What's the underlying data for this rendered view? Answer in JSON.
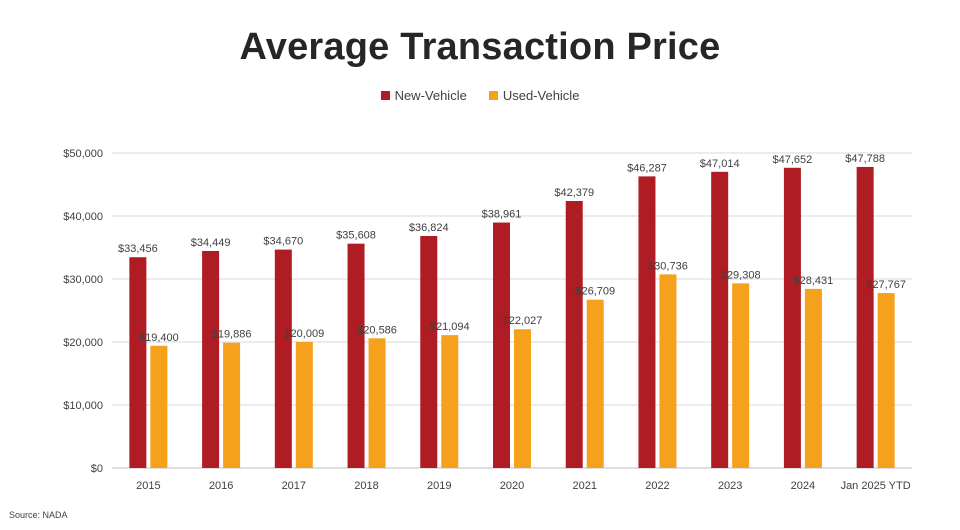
{
  "chart_data": {
    "type": "bar",
    "title": "Average Transaction Price",
    "categories": [
      "2015",
      "2016",
      "2017",
      "2018",
      "2019",
      "2020",
      "2021",
      "2022",
      "2023",
      "2024",
      "Jan 2025 YTD"
    ],
    "series": [
      {
        "name": "New-Vehicle",
        "color": "#b01c24",
        "values": [
          33456,
          34449,
          34670,
          35608,
          36824,
          38961,
          42379,
          46287,
          47014,
          47652,
          47788
        ],
        "labels": [
          "$33,456",
          "$34,449",
          "$34,670",
          "$35,608",
          "$36,824",
          "$38,961",
          "$42,379",
          "$46,287",
          "$47,014",
          "$47,652",
          "$47,788"
        ]
      },
      {
        "name": "Used-Vehicle",
        "color": "#f5a11c",
        "values": [
          19400,
          19886,
          20009,
          20586,
          21094,
          22027,
          26709,
          30736,
          29308,
          28431,
          27767
        ],
        "labels": [
          "$19,400",
          "$19,886",
          "$20,009",
          "$20,586",
          "$21,094",
          "$22,027",
          "$26,709",
          "$30,736",
          "$29,308",
          "$28,431",
          "$27,767"
        ]
      }
    ],
    "ylim": [
      0,
      50000
    ],
    "yticks": [
      0,
      10000,
      20000,
      30000,
      40000,
      50000
    ],
    "ytick_labels": [
      "$0",
      "$10,000",
      "$20,000",
      "$30,000",
      "$40,000",
      "$50,000"
    ],
    "xlabel": "",
    "ylabel": "",
    "grid": true,
    "legend_position": "top-center"
  },
  "source_note": "Source: NADA"
}
